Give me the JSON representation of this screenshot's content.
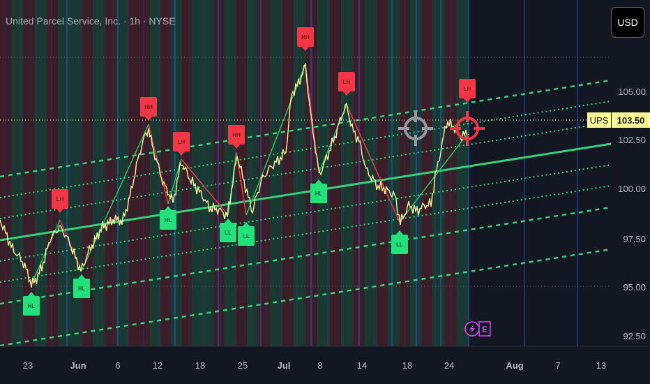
{
  "header": {
    "title": "United Parcel Service, Inc. · 1h · NYSE"
  },
  "toolbar": {
    "currency_label": "USD"
  },
  "last_price": {
    "symbol": "UPS",
    "value": "103.50",
    "price": 103.5
  },
  "price_axis": {
    "labels": [
      "105.00",
      "102.50",
      "100.00",
      "97.50",
      "95.00",
      "92.50"
    ]
  },
  "time_axis": {
    "labels": [
      "23",
      "Jun",
      "6",
      "12",
      "18",
      "25",
      "Jul",
      "8",
      "14",
      "18",
      "24",
      "Aug",
      "7",
      "13"
    ]
  },
  "colors": {
    "pivot_high": "#f23645",
    "pivot_low": "#22e07a",
    "channel": "#34d17a",
    "price_line": "#fff59d",
    "accent": "#2962ff",
    "event": "#e040fb"
  },
  "icons": [
    "crosshair-target-icon",
    "lightning-icon",
    "earnings-icon"
  ],
  "events": {
    "earnings_label": "E"
  },
  "pivots": [
    {
      "label": "HL",
      "type": "low"
    },
    {
      "label": "LH",
      "type": "high"
    },
    {
      "label": "HL",
      "type": "low"
    },
    {
      "label": "HH",
      "type": "high"
    },
    {
      "label": "HL",
      "type": "low"
    },
    {
      "label": "LH",
      "type": "high"
    },
    {
      "label": "LL",
      "type": "low"
    },
    {
      "label": "HH",
      "type": "high"
    },
    {
      "label": "LL",
      "type": "low"
    },
    {
      "label": "HH",
      "type": "high"
    },
    {
      "label": "HL",
      "type": "low"
    },
    {
      "label": "LH",
      "type": "high"
    },
    {
      "label": "LL",
      "type": "low"
    },
    {
      "label": "LH",
      "type": "high"
    }
  ]
}
